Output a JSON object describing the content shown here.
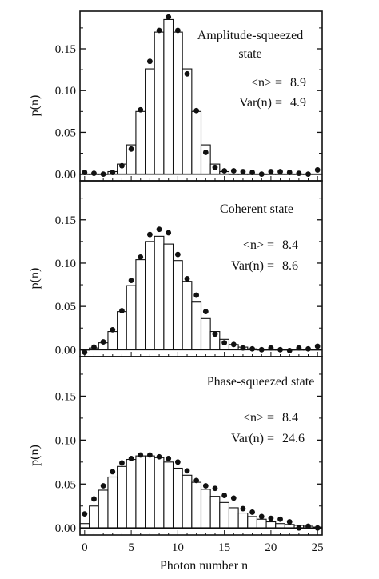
{
  "figure": {
    "xlabel": "Photon number n",
    "x_ticks": [
      "0",
      "5",
      "10",
      "15",
      "20",
      "25"
    ],
    "y_tick_values": [
      0.0,
      0.05,
      0.1,
      0.15
    ],
    "y_tick_labels": [
      "0.00",
      "0.05",
      "0.10",
      "0.15"
    ]
  },
  "chart_data": [
    {
      "type": "bar",
      "title": "Amplitude-squeezed state",
      "title_lines": [
        "Amplitude-squeezed",
        "state"
      ],
      "ylabel": "p(n)",
      "xlabel": "",
      "xlim": [
        -0.5,
        25.5
      ],
      "ylim": [
        -0.008,
        0.195
      ],
      "stats": {
        "mean_label": "<n> =",
        "mean_value": "8.9",
        "var_label": "Var(n) =",
        "var_value": "4.9"
      },
      "x": [
        0,
        1,
        2,
        3,
        4,
        5,
        6,
        7,
        8,
        9,
        10,
        11,
        12,
        13,
        14,
        15,
        16,
        17,
        18,
        19,
        20,
        21,
        22,
        23,
        24,
        25
      ],
      "series": [
        {
          "kind": "bars",
          "values": [
            0.0,
            0.0,
            0.0,
            0.003,
            0.012,
            0.035,
            0.075,
            0.126,
            0.17,
            0.185,
            0.17,
            0.126,
            0.075,
            0.035,
            0.012,
            0.003,
            0.0,
            0.0,
            0.0,
            0.0,
            0.0,
            0.0,
            0.0,
            0.0,
            0.0,
            0.0
          ]
        },
        {
          "kind": "points",
          "values": [
            0.002,
            0.001,
            0.0,
            0.002,
            0.01,
            0.03,
            0.077,
            0.135,
            0.172,
            0.188,
            0.172,
            0.12,
            0.076,
            0.026,
            0.008,
            0.004,
            0.004,
            0.003,
            0.002,
            0.0,
            0.003,
            0.003,
            0.002,
            0.001,
            0.0,
            0.005
          ]
        }
      ]
    },
    {
      "type": "bar",
      "title": "Coherent state",
      "title_lines": [
        "Coherent state"
      ],
      "ylabel": "p(n)",
      "xlabel": "",
      "xlim": [
        -0.5,
        25.5
      ],
      "ylim": [
        -0.008,
        0.195
      ],
      "stats": {
        "mean_label": "<n> =",
        "mean_value": "8.4",
        "var_label": "Var(n) =",
        "var_value": "8.6"
      },
      "x": [
        0,
        1,
        2,
        3,
        4,
        5,
        6,
        7,
        8,
        9,
        10,
        11,
        12,
        13,
        14,
        15,
        16,
        17,
        18,
        19,
        20,
        21,
        22,
        23,
        24,
        25
      ],
      "series": [
        {
          "kind": "bars",
          "values": [
            0.0,
            0.002,
            0.008,
            0.021,
            0.044,
            0.074,
            0.104,
            0.125,
            0.131,
            0.122,
            0.103,
            0.079,
            0.055,
            0.036,
            0.021,
            0.012,
            0.006,
            0.003,
            0.001,
            0.0,
            0.0,
            0.0,
            0.0,
            0.0,
            0.0,
            0.0
          ]
        },
        {
          "kind": "points",
          "values": [
            -0.003,
            0.003,
            0.009,
            0.023,
            0.045,
            0.08,
            0.107,
            0.133,
            0.139,
            0.135,
            0.11,
            0.082,
            0.063,
            0.044,
            0.018,
            0.008,
            0.006,
            0.002,
            0.001,
            0.0,
            0.002,
            0.0,
            -0.001,
            0.002,
            0.001,
            0.004
          ]
        }
      ]
    },
    {
      "type": "bar",
      "title": "Phase-squeezed state",
      "title_lines": [
        "Phase-squeezed state"
      ],
      "ylabel": "p(n)",
      "xlabel": "Photon number n",
      "xlim": [
        -0.5,
        25.5
      ],
      "ylim": [
        -0.008,
        0.195
      ],
      "stats": {
        "mean_label": "<n> =",
        "mean_value": "8.4",
        "var_label": "Var(n) =",
        "var_value": "24.6"
      },
      "x": [
        0,
        1,
        2,
        3,
        4,
        5,
        6,
        7,
        8,
        9,
        10,
        11,
        12,
        13,
        14,
        15,
        16,
        17,
        18,
        19,
        20,
        21,
        22,
        23,
        24,
        25
      ],
      "series": [
        {
          "kind": "bars",
          "values": [
            0.005,
            0.025,
            0.043,
            0.058,
            0.07,
            0.078,
            0.082,
            0.082,
            0.08,
            0.075,
            0.068,
            0.06,
            0.052,
            0.044,
            0.036,
            0.029,
            0.023,
            0.017,
            0.013,
            0.01,
            0.007,
            0.005,
            0.004,
            0.003,
            0.002,
            0.001
          ]
        },
        {
          "kind": "points",
          "values": [
            0.016,
            0.033,
            0.048,
            0.064,
            0.074,
            0.079,
            0.083,
            0.083,
            0.081,
            0.079,
            0.075,
            0.065,
            0.054,
            0.048,
            0.045,
            0.037,
            0.034,
            0.022,
            0.018,
            0.013,
            0.011,
            0.01,
            0.007,
            0.0,
            0.002,
            0.0
          ]
        }
      ]
    }
  ]
}
